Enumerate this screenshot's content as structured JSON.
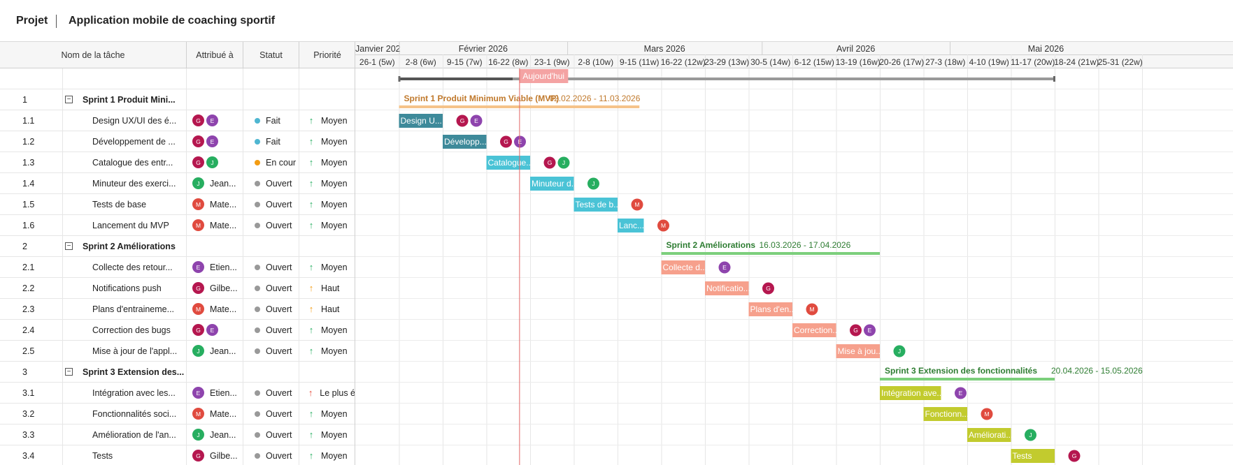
{
  "header": {
    "root": "Projet",
    "title": "Application mobile de coaching sportif"
  },
  "columns": {
    "name": "Nom de la tâche",
    "assigned": "Attribué à",
    "status": "Statut",
    "priority": "Priorité"
  },
  "people": {
    "G": {
      "initial": "G",
      "color": "#b5174f"
    },
    "E": {
      "initial": "E",
      "color": "#8e44ad"
    },
    "J": {
      "initial": "J",
      "color": "#27ae60"
    },
    "M": {
      "initial": "M",
      "color": "#e04b3f"
    }
  },
  "statuses": {
    "done": {
      "label": "Fait",
      "color": "#4fb6d1"
    },
    "progress": {
      "label": "En cour",
      "color": "#f39c12"
    },
    "open": {
      "label": "Ouvert",
      "color": "#999999"
    }
  },
  "priorities": {
    "medium": {
      "label": "Moyen",
      "color": "#27ae60",
      "icon": "arrow-up-icon"
    },
    "high": {
      "label": "Haut",
      "color": "#f39c12",
      "icon": "arrow-up-icon"
    },
    "highest": {
      "label": "Le plus é",
      "color": "#e74c3c",
      "icon": "arrow-up-icon"
    }
  },
  "timeline": {
    "months": [
      "Janvier 202",
      "Février 2026",
      "Mars 2026",
      "Avril 2026",
      "Mai 2026"
    ],
    "weeks": [
      "26-1 (5w)",
      "2-8 (6w)",
      "9-15 (7w)",
      "16-22 (8w)",
      "23-1 (9w)",
      "2-8 (10w)",
      "9-15 (11w)",
      "16-22 (12w)",
      "23-29 (13w)",
      "30-5 (14w)",
      "6-12 (15w)",
      "13-19 (16w)",
      "20-26 (17w)",
      "27-3 (18w)",
      "4-10 (19w)",
      "11-17 (20w)",
      "18-24 (21w)",
      "25-31 (22w)"
    ],
    "today_label": "Aujourd'hui"
  },
  "rows": [
    {
      "type": "project"
    },
    {
      "type": "group",
      "wbs": "1",
      "name": "Sprint 1 Produit Mini...",
      "bar_label": "Sprint 1 Produit Minimum Viable (MVP)",
      "dates": "02.02.2026 - 11.03.2026",
      "color": "#f5c38a",
      "text_color": "#c0792c"
    },
    {
      "type": "task",
      "wbs": "1.1",
      "name": "Design UX/UI des é...",
      "assignees": [
        "G",
        "E"
      ],
      "assignee_name": "",
      "status": "done",
      "priority": "medium",
      "bar_label": "Design U...",
      "color": "#3e8a9a"
    },
    {
      "type": "task",
      "wbs": "1.2",
      "name": "Développement de ...",
      "assignees": [
        "G",
        "E"
      ],
      "assignee_name": "",
      "status": "done",
      "priority": "medium",
      "bar_label": "Développ...",
      "color": "#3e8a9a"
    },
    {
      "type": "task",
      "wbs": "1.3",
      "name": "Catalogue des entr...",
      "assignees": [
        "G",
        "J"
      ],
      "assignee_name": "",
      "status": "progress",
      "priority": "medium",
      "bar_label": "Catalogue...",
      "color": "#4ac3d6"
    },
    {
      "type": "task",
      "wbs": "1.4",
      "name": "Minuteur des exerci...",
      "assignees": [
        "J"
      ],
      "assignee_name": "Jean...",
      "status": "open",
      "priority": "medium",
      "bar_label": "Minuteur d...",
      "color": "#4ac3d6"
    },
    {
      "type": "task",
      "wbs": "1.5",
      "name": "Tests de base",
      "assignees": [
        "M"
      ],
      "assignee_name": "Mate...",
      "status": "open",
      "priority": "medium",
      "bar_label": "Tests de b...",
      "color": "#4ac3d6"
    },
    {
      "type": "task",
      "wbs": "1.6",
      "name": "Lancement du MVP",
      "assignees": [
        "M"
      ],
      "assignee_name": "Mate...",
      "status": "open",
      "priority": "medium",
      "bar_label": "Lanc...",
      "color": "#4ac3d6"
    },
    {
      "type": "group",
      "wbs": "2",
      "name": "Sprint 2 Améliorations",
      "bar_label": "Sprint 2 Améliorations",
      "dates": "16.03.2026 - 17.04.2026",
      "color": "#7ccf7c",
      "text_color": "#2e7d32"
    },
    {
      "type": "task",
      "wbs": "2.1",
      "name": "Collecte des retour...",
      "assignees": [
        "E"
      ],
      "assignee_name": "Etien...",
      "status": "open",
      "priority": "medium",
      "bar_label": "Collecte d...",
      "color": "#f6a08c"
    },
    {
      "type": "task",
      "wbs": "2.2",
      "name": "Notifications push",
      "assignees": [
        "G"
      ],
      "assignee_name": "Gilbe...",
      "status": "open",
      "priority": "high",
      "bar_label": "Notificatio...",
      "color": "#f6a08c"
    },
    {
      "type": "task",
      "wbs": "2.3",
      "name": "Plans d'entraineme...",
      "assignees": [
        "M"
      ],
      "assignee_name": "Mate...",
      "status": "open",
      "priority": "high",
      "bar_label": "Plans d'en...",
      "color": "#f6a08c"
    },
    {
      "type": "task",
      "wbs": "2.4",
      "name": "Correction des bugs",
      "assignees": [
        "G",
        "E"
      ],
      "assignee_name": "",
      "status": "open",
      "priority": "medium",
      "bar_label": "Correction...",
      "color": "#f6a08c"
    },
    {
      "type": "task",
      "wbs": "2.5",
      "name": "Mise à jour de l'appl...",
      "assignees": [
        "J"
      ],
      "assignee_name": "Jean...",
      "status": "open",
      "priority": "medium",
      "bar_label": "Mise à jou...",
      "color": "#f6a08c"
    },
    {
      "type": "group",
      "wbs": "3",
      "name": "Sprint 3 Extension des...",
      "bar_label": "Sprint 3 Extension des fonctionnalités",
      "dates": "20.04.2026 - 15.05.2026",
      "color": "#7ccf7c",
      "text_color": "#2e7d32"
    },
    {
      "type": "task",
      "wbs": "3.1",
      "name": "Intégration avec les...",
      "assignees": [
        "E"
      ],
      "assignee_name": "Etien...",
      "status": "open",
      "priority": "highest",
      "bar_label": "Intégration ave...",
      "color": "#c2cb2e"
    },
    {
      "type": "task",
      "wbs": "3.2",
      "name": "Fonctionnalités soci...",
      "assignees": [
        "M"
      ],
      "assignee_name": "Mate...",
      "status": "open",
      "priority": "medium",
      "bar_label": "Fonctionn...",
      "color": "#c2cb2e"
    },
    {
      "type": "task",
      "wbs": "3.3",
      "name": "Amélioration de l'an...",
      "assignees": [
        "J"
      ],
      "assignee_name": "Jean...",
      "status": "open",
      "priority": "medium",
      "bar_label": "Améliorati...",
      "color": "#c2cb2e"
    },
    {
      "type": "task",
      "wbs": "3.4",
      "name": "Tests",
      "assignees": [
        "G"
      ],
      "assignee_name": "Gilbe...",
      "status": "open",
      "priority": "medium",
      "bar_label": "Tests",
      "color": "#c2cb2e"
    }
  ]
}
